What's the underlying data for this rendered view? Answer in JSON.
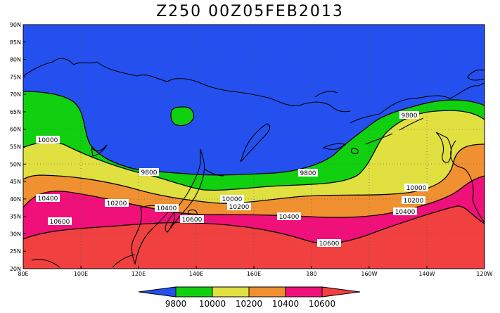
{
  "title": "Z250 00Z05FEB2013",
  "chart_data": {
    "type": "contour",
    "variable": "Z250",
    "lat_ticks": [
      "20N",
      "25N",
      "30N",
      "35N",
      "40N",
      "45N",
      "50N",
      "55N",
      "60N",
      "65N",
      "70N",
      "75N",
      "80N",
      "85N",
      "90N"
    ],
    "lon_ticks": [
      "80E",
      "100E",
      "120E",
      "140E",
      "160E",
      "180",
      "160W",
      "140W",
      "120W"
    ],
    "contour_labels": [
      {
        "text": "9800"
      },
      {
        "text": "9800"
      },
      {
        "text": "9800"
      },
      {
        "text": "10000"
      },
      {
        "text": "10000"
      },
      {
        "text": "10000"
      },
      {
        "text": "10200"
      },
      {
        "text": "10200"
      },
      {
        "text": "10200"
      },
      {
        "text": "10400"
      },
      {
        "text": "10400"
      },
      {
        "text": "10400"
      },
      {
        "text": "10400"
      },
      {
        "text": "10600"
      },
      {
        "text": "10600"
      },
      {
        "text": "10600"
      }
    ],
    "legend": {
      "levels": [
        "9800",
        "10000",
        "10200",
        "10400",
        "10600"
      ],
      "colors": [
        "#2450f0",
        "#10d010",
        "#e0e040",
        "#f09030",
        "#f0107a",
        "#f04040"
      ]
    },
    "grid": true
  }
}
